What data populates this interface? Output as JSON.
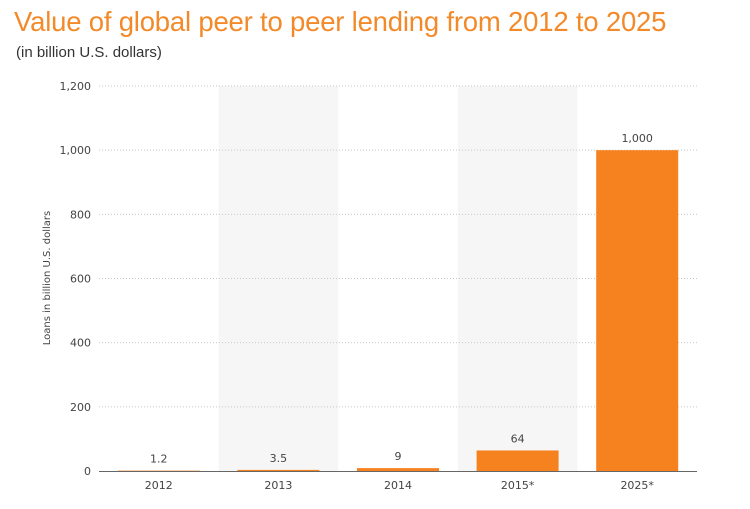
{
  "title": "Value of global peer to peer lending from 2012 to 2025",
  "subtitle": "(in billion U.S. dollars)",
  "colors": {
    "bar": "#f5821f",
    "title": "#f38a2a",
    "stripe": "#f6f6f6",
    "grid": "#c8c8c8",
    "axis": "#666666",
    "text": "#444444"
  },
  "chart_data": {
    "type": "bar",
    "title": "Value of global peer to peer lending from 2012 to 2025",
    "subtitle": "(in billion U.S. dollars)",
    "xlabel": "",
    "ylabel": "Loans in billion U.S. dollars",
    "categories": [
      "2012",
      "2013",
      "2014",
      "2015*",
      "2025*"
    ],
    "values": [
      1.2,
      3.5,
      9,
      64,
      1000
    ],
    "value_labels": [
      "1.2",
      "3.5",
      "9",
      "64",
      "1,000"
    ],
    "ylim": [
      0,
      1200
    ],
    "yticks": [
      0,
      200,
      400,
      600,
      800,
      1000,
      1200
    ],
    "ytick_labels": [
      "0",
      "200",
      "400",
      "600",
      "800",
      "1,000",
      "1,200"
    ],
    "grid": true,
    "alternating_column_shading": true,
    "legend": "none"
  }
}
